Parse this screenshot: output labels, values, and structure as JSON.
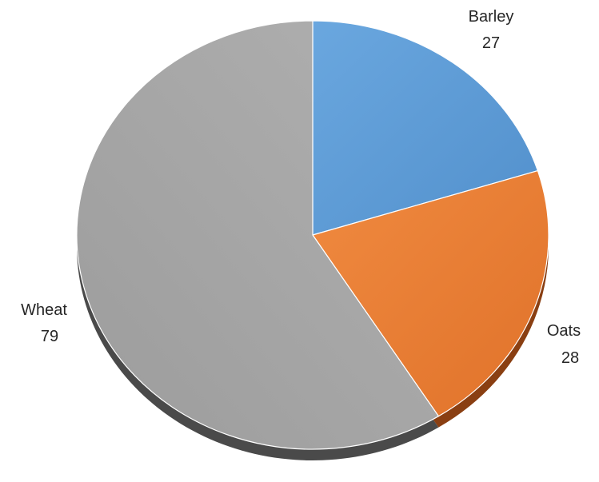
{
  "chart_data": {
    "type": "pie",
    "title": "",
    "slices": [
      {
        "label": "Barley",
        "value": 27,
        "color": "#5b9bd5",
        "shadow": "#2e5f8f"
      },
      {
        "label": "Oats",
        "value": 28,
        "color": "#ed7d31",
        "shadow": "#8a3f12"
      },
      {
        "label": "Wheat",
        "value": 79,
        "color": "#a5a5a5",
        "shadow": "#4a4a4a"
      }
    ],
    "legend": "none",
    "data_labels": "category and value"
  }
}
